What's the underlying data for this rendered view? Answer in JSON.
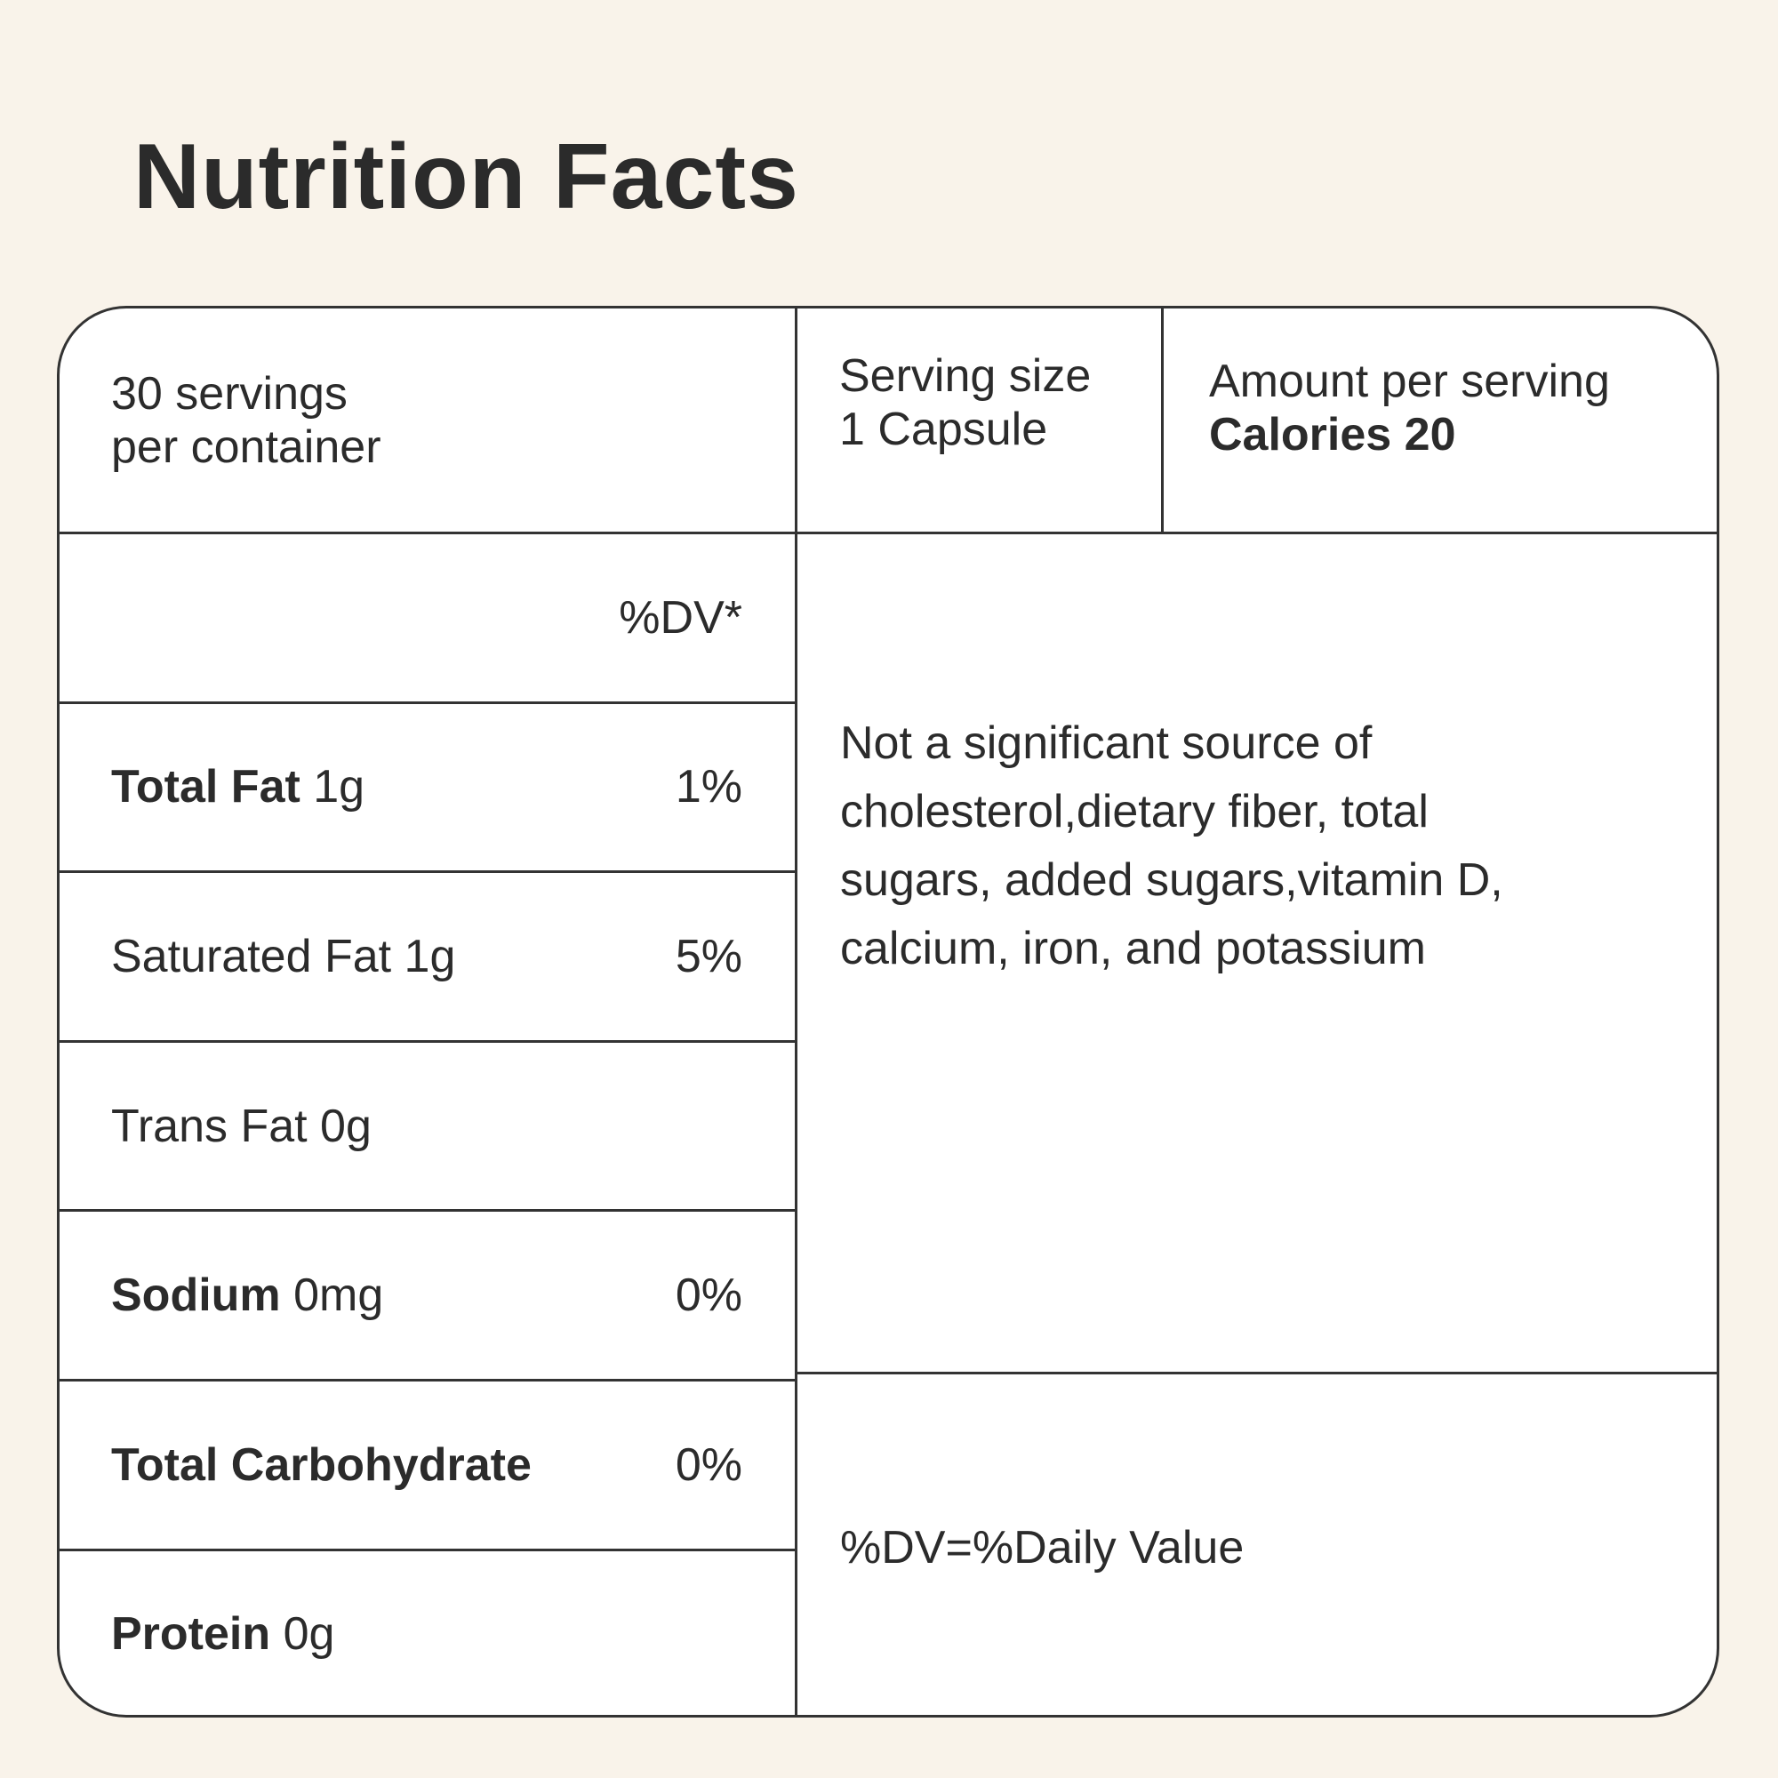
{
  "header": {
    "title": "Nutrition Facts"
  },
  "table": {
    "servings": [
      "30 servings",
      "per container"
    ],
    "serving_size": [
      "Serving size",
      "1 Capsule"
    ],
    "amount": {
      "label": "Amount per serving",
      "calories": "Calories 20"
    },
    "dv_header": "%DV*",
    "rows": [
      {
        "name": "Total Fat",
        "amount": "1g",
        "dv": "1%",
        "bold": true
      },
      {
        "name": "Saturated Fat",
        "amount": "1g",
        "dv": "5%",
        "bold": false
      },
      {
        "name": "Trans Fat",
        "amount": "0g",
        "dv": null,
        "bold": false
      },
      {
        "name": "Sodium",
        "amount": "0mg",
        "dv": "0%",
        "bold": true
      },
      {
        "name": "Total Carbohydrate",
        "amount": null,
        "dv": "0%",
        "bold": true
      },
      {
        "name": "Protein",
        "amount": "0g",
        "dv": null,
        "bold": true
      }
    ],
    "note": [
      "Not a significant source of",
      "cholesterol,dietary fiber, total",
      "sugars, added sugars,vitamin D,",
      "calcium, iron, and potassium"
    ],
    "footnote": "%DV=%Daily Value"
  }
}
